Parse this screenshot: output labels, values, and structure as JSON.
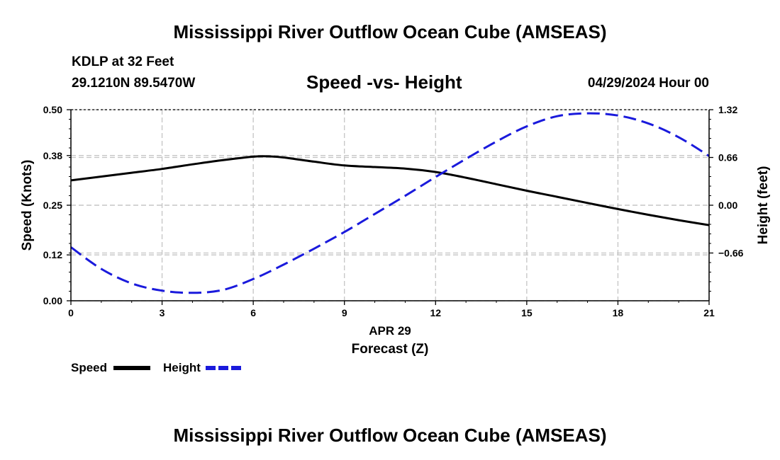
{
  "header": {
    "title": "Mississippi River Outflow Ocean Cube (AMSEAS)",
    "station": "KDLP at 32 Feet",
    "coords": "29.1210N  89.5470W",
    "subtitle": "Speed -vs- Height",
    "datetime": "04/29/2024 Hour 00"
  },
  "footer": {
    "title": "Mississippi River Outflow Ocean Cube (AMSEAS)"
  },
  "chart_data": {
    "type": "line",
    "title": "Speed -vs- Height",
    "xlabel_date": "APR 29",
    "xlabel": "Forecast (Z)",
    "ylabel_left": "Speed (Knots)",
    "ylabel_right": "Height (feet)",
    "xlim": [
      0,
      21
    ],
    "ylim_left": [
      0,
      0.5
    ],
    "ylim_right": [
      -1.32,
      1.32
    ],
    "x_ticks": [
      "0",
      "3",
      "6",
      "9",
      "12",
      "15",
      "18",
      "21"
    ],
    "y_left_ticks": [
      "0.00",
      "0.12",
      "0.25",
      "0.38",
      "0.50"
    ],
    "y_right_ticks": [
      "−0.66",
      "0.00",
      "0.66",
      "1.32"
    ],
    "grid": true,
    "series": [
      {
        "name": "Speed",
        "axis": "left",
        "color": "#000000",
        "style": "solid",
        "x": [
          0,
          1,
          2,
          3,
          4,
          5,
          6,
          6.5,
          7,
          8,
          9,
          10,
          11,
          12,
          13,
          14,
          15,
          16,
          17,
          18,
          19,
          20,
          21
        ],
        "y": [
          0.315,
          0.325,
          0.335,
          0.345,
          0.357,
          0.368,
          0.377,
          0.378,
          0.375,
          0.364,
          0.354,
          0.35,
          0.346,
          0.337,
          0.322,
          0.305,
          0.288,
          0.272,
          0.256,
          0.24,
          0.225,
          0.211,
          0.198
        ]
      },
      {
        "name": "Height",
        "axis": "right",
        "color": "#1a1adc",
        "style": "dashed",
        "x": [
          0,
          1,
          2,
          3,
          4,
          5,
          6,
          7,
          8,
          9,
          10,
          11,
          12,
          13,
          14,
          15,
          16,
          17,
          18,
          19,
          20,
          21
        ],
        "y": [
          -0.58,
          -0.88,
          -1.08,
          -1.18,
          -1.21,
          -1.17,
          -1.02,
          -0.82,
          -0.6,
          -0.37,
          -0.12,
          0.13,
          0.39,
          0.64,
          0.88,
          1.09,
          1.23,
          1.27,
          1.24,
          1.13,
          0.94,
          0.68
        ]
      }
    ],
    "legend": [
      {
        "name": "Speed",
        "color": "#000000",
        "style": "solid"
      },
      {
        "name": "Height",
        "color": "#1a1adc",
        "style": "dashed"
      }
    ]
  }
}
